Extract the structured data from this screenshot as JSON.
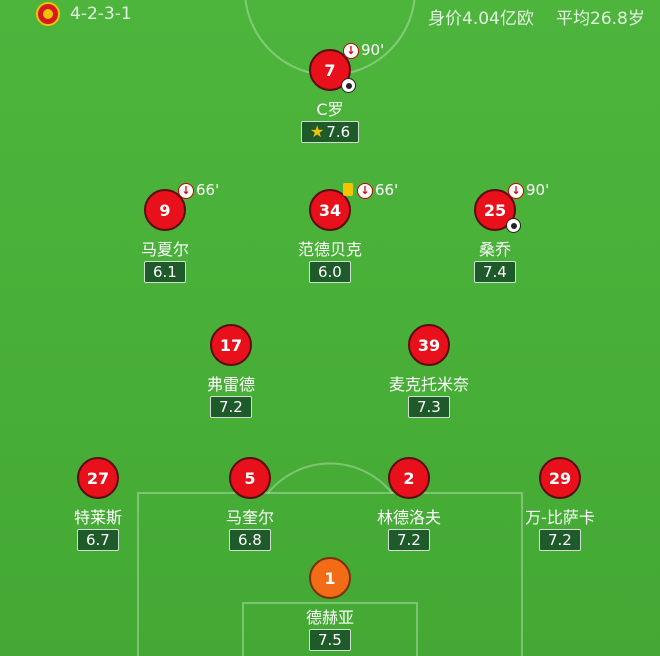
{
  "header": {
    "formation": "4-2-3-1",
    "market_value": "身价4.04亿欧",
    "average_age": "平均26.8岁"
  },
  "players": [
    {
      "number": "7",
      "name": "C罗",
      "rating": "7.6",
      "sub": "90'",
      "goal": true,
      "star": true
    },
    {
      "number": "9",
      "name": "马夏尔",
      "rating": "6.1",
      "sub": "66'"
    },
    {
      "number": "34",
      "name": "范德贝克",
      "rating": "6.0",
      "sub": "66'",
      "yellow_card": true
    },
    {
      "number": "25",
      "name": "桑乔",
      "rating": "7.4",
      "sub": "90'",
      "goal": true
    },
    {
      "number": "17",
      "name": "弗雷德",
      "rating": "7.2"
    },
    {
      "number": "39",
      "name": "麦克托米奈",
      "rating": "7.3"
    },
    {
      "number": "27",
      "name": "特莱斯",
      "rating": "6.7"
    },
    {
      "number": "5",
      "name": "马奎尔",
      "rating": "6.8"
    },
    {
      "number": "2",
      "name": "林德洛夫",
      "rating": "7.2"
    },
    {
      "number": "29",
      "name": "万-比萨卡",
      "rating": "7.2"
    },
    {
      "number": "1",
      "name": "德赫亚",
      "rating": "7.5",
      "goalkeeper": true
    }
  ]
}
